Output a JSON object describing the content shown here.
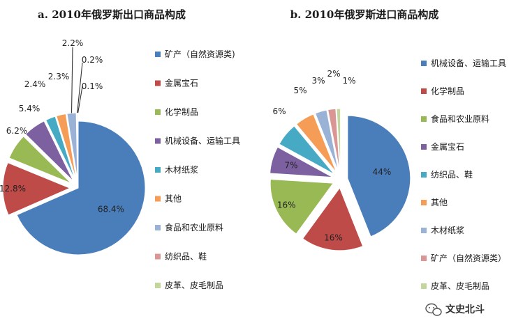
{
  "chart_data": [
    {
      "type": "pie",
      "title": "a. 2010年俄罗斯出口商品构成",
      "categories": [
        "矿产（自然资源类)",
        "金属宝石",
        "化学制品",
        "机械设备、运输工具",
        "木材纸浆",
        "其他",
        "食品和农业原料",
        "纺织品、鞋",
        "皮革、皮毛制品"
      ],
      "values": [
        68.4,
        12.8,
        6.2,
        5.4,
        2.4,
        2.3,
        2.2,
        0.2,
        0.1
      ],
      "value_labels": [
        "68.4%",
        "12.8%",
        "6.2%",
        "5.4%",
        "2.4%",
        "2.3%",
        "2.2%",
        "0.2%",
        "0.1%"
      ],
      "colors": [
        "#4A7EBB",
        "#BE4B48",
        "#98B954",
        "#7D60A0",
        "#46AAC5",
        "#F59D56",
        "#9BB2D7",
        "#D99694",
        "#C3D69B"
      ],
      "legend_position": "right"
    },
    {
      "type": "pie",
      "title": "b. 2010年俄罗斯进口商品构成",
      "categories": [
        "机械设备、运输工具",
        "化学制品",
        "食品和农业原料",
        "金属宝石",
        "纺织品、鞋",
        "其他",
        "木材纸浆",
        "矿产（自然资源类）",
        "皮革、皮毛制品"
      ],
      "values": [
        44,
        16,
        16,
        7,
        6,
        5,
        3,
        2,
        1
      ],
      "value_labels": [
        "44%",
        "16%",
        "16%",
        "7%",
        "6%",
        "5%",
        "3%",
        "2%",
        "1%"
      ],
      "colors": [
        "#4A7EBB",
        "#BE4B48",
        "#98B954",
        "#7D60A0",
        "#46AAC5",
        "#F59D56",
        "#9BB2D7",
        "#D99694",
        "#C3D69B"
      ],
      "legend_position": "right"
    }
  ],
  "watermark": {
    "text": "文史北斗",
    "icon": "wechat-icon"
  }
}
